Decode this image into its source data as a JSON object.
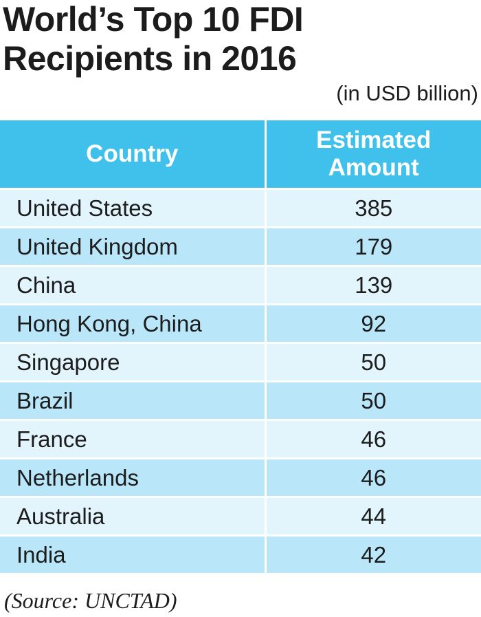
{
  "chart_data": {
    "type": "table",
    "title_line1": "World’s Top 10 FDI",
    "title_line2": "Recipients in 2016",
    "unit_note": "(in USD billion)",
    "columns": [
      "Country",
      "Estimated Amount"
    ],
    "column_header_lines": [
      [
        "Country"
      ],
      [
        "Estimated",
        "Amount"
      ]
    ],
    "rows": [
      {
        "country": "United States",
        "amount": "385"
      },
      {
        "country": "United Kingdom",
        "amount": "179"
      },
      {
        "country": "China",
        "amount": "139"
      },
      {
        "country": "Hong Kong, China",
        "amount": "92"
      },
      {
        "country": "Singapore",
        "amount": "50"
      },
      {
        "country": "Brazil",
        "amount": "50"
      },
      {
        "country": "France",
        "amount": "46"
      },
      {
        "country": "Netherlands",
        "amount": "46"
      },
      {
        "country": "Australia",
        "amount": "44"
      },
      {
        "country": "India",
        "amount": "42"
      }
    ],
    "source": "(Source: UNCTAD)",
    "colors": {
      "header": "#3fc1ec",
      "row_light": "#e3f5fc",
      "row_dark": "#b9e6f8"
    }
  }
}
